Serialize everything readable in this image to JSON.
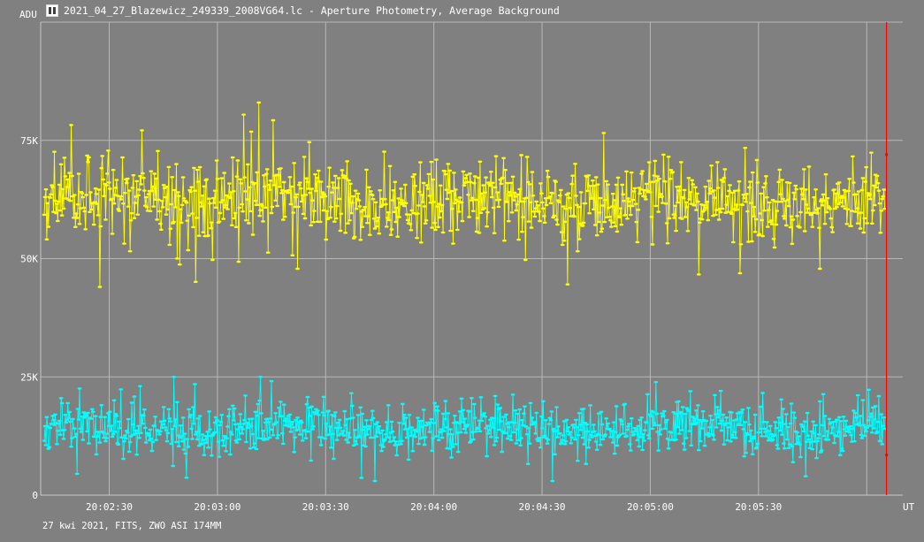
{
  "window": {
    "title": "2021_04_27_Blazewicz_249339_2008VG64.lc - Aperture Photometry, Average Background",
    "icon": "light-curve-app-icon"
  },
  "footer": {
    "text": "27 kwi 2021, FITS, ZWO ASI 174MM"
  },
  "colors": {
    "background": "#808080",
    "grid": "#b8b8b8",
    "frame": "#c8c8c8",
    "text": "#ffffff",
    "marker_line": "#ff0000"
  },
  "chart_data": {
    "type": "scatter",
    "title": "",
    "ylabel": "ADU",
    "xlabel": "UT",
    "ylim": [
      0,
      100000
    ],
    "xlim": [
      "20:02:11",
      "20:06:10"
    ],
    "y_ticks": [
      {
        "value": 0,
        "label": "0"
      },
      {
        "value": 25000,
        "label": "25K"
      },
      {
        "value": 50000,
        "label": "50K"
      },
      {
        "value": 75000,
        "label": "75K"
      }
    ],
    "x_ticks": [
      "20:02:30",
      "20:03:00",
      "20:03:30",
      "20:04:00",
      "20:04:30",
      "20:05:00",
      "20:05:30",
      "20:06:00"
    ],
    "x_tick_labels": [
      "20:02:30",
      "20:03:00",
      "20:03:30",
      "20:04:00",
      "20:04:30",
      "20:05:00",
      "20:05:30"
    ],
    "grid": true,
    "style": "points joined by lines",
    "series": [
      {
        "color": "#ffff00",
        "mean": 62000,
        "scatter": 5500,
        "min": 44000,
        "max": 83000,
        "n_points": 1000
      },
      {
        "color": "#00ffff",
        "mean": 14000,
        "scatter": 3500,
        "min": 3000,
        "max": 25000,
        "n_points": 1000
      }
    ],
    "cursor": {
      "time": "20:06:05",
      "markers": [
        72000,
        8500
      ]
    }
  }
}
